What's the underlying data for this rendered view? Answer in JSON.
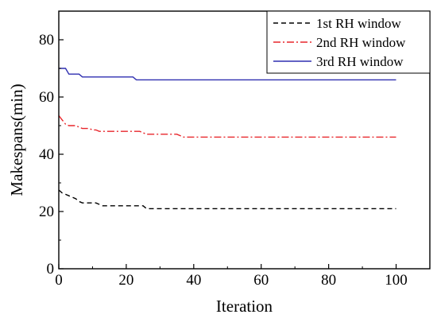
{
  "chart_data": {
    "type": "line",
    "title": "",
    "xlabel": "Iteration",
    "ylabel": "Makespans(min)",
    "xlim": [
      0,
      110
    ],
    "ylim": [
      0,
      90
    ],
    "xticks": [
      0,
      20,
      40,
      60,
      80,
      100
    ],
    "yticks": [
      0,
      20,
      40,
      60,
      80
    ],
    "x_tick_labels": [
      "0",
      "20",
      "40",
      "60",
      "80",
      "100"
    ],
    "y_tick_labels": [
      "0",
      "20",
      "40",
      "60",
      "80"
    ],
    "grid": false,
    "legend_position": "top-right",
    "series": [
      {
        "name": "1st RH window",
        "color": "#000000",
        "dash": "dashed",
        "x": [
          0,
          1,
          2,
          3,
          4,
          5,
          6,
          7,
          8,
          9,
          10,
          11,
          12,
          13,
          14,
          15,
          16,
          17,
          18,
          19,
          20,
          21,
          22,
          23,
          24,
          25,
          26,
          27,
          28,
          30,
          40,
          50,
          60,
          70,
          80,
          90,
          100
        ],
        "values": [
          27.5,
          26.5,
          26,
          25.5,
          25,
          24.5,
          23.5,
          23,
          23,
          23,
          23,
          23,
          22.5,
          22,
          22,
          22,
          22,
          22,
          22,
          22,
          22,
          22,
          22,
          22,
          22,
          22,
          21,
          21,
          21,
          21,
          21,
          21,
          21,
          21,
          21,
          21,
          21
        ]
      },
      {
        "name": "2nd RH window",
        "color": "#e8262b",
        "dash": "dashdot",
        "x": [
          0,
          1,
          2,
          3,
          4,
          5,
          6,
          7,
          8,
          9,
          10,
          11,
          12,
          20,
          24,
          25,
          26,
          30,
          35,
          36,
          37,
          40,
          50,
          60,
          70,
          80,
          90,
          100
        ],
        "values": [
          53.5,
          52,
          50.5,
          50,
          50,
          50,
          49.5,
          49,
          49,
          49,
          48.5,
          48.5,
          48,
          48,
          48,
          47.5,
          47,
          47,
          47,
          46.5,
          46,
          46,
          46,
          46,
          46,
          46,
          46,
          46
        ]
      },
      {
        "name": "3rd RH window",
        "color": "#2f2fb0",
        "dash": "solid",
        "x": [
          0,
          2,
          3,
          6,
          7,
          20,
          22,
          23,
          40,
          60,
          80,
          100
        ],
        "values": [
          70,
          70,
          68,
          68,
          67,
          67,
          67,
          66,
          66,
          66,
          66,
          66
        ]
      }
    ]
  }
}
